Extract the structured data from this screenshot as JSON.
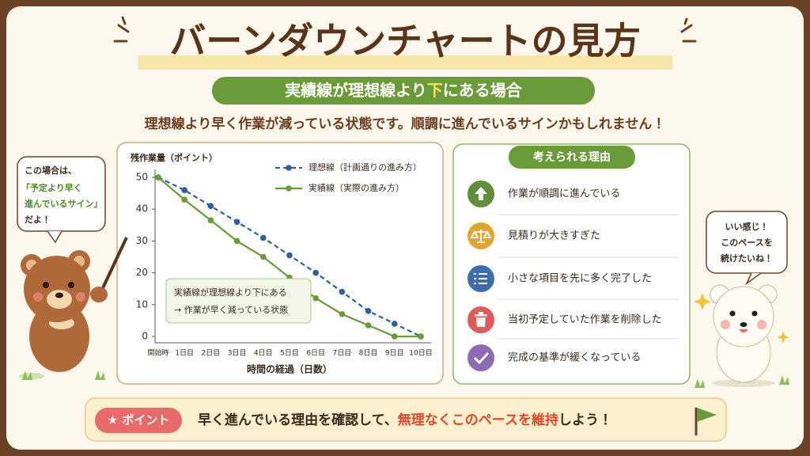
{
  "title": "バーンダウンチャートの見方",
  "subtitle": [
    "実績線が理想線より",
    "下",
    "にある場合"
  ],
  "lead": "理想線より早く作業が減っている状態です。順調に進んでいるサインかもしれません！",
  "left_bubble": [
    "この場合は、",
    "「予定より早く",
    "進んでいるサイン」",
    "だよ！"
  ],
  "right_bubble": [
    "いい感じ！",
    "このペースを",
    "続けたいね！"
  ],
  "chart_data": {
    "type": "line",
    "y_label": "残作業量（ポイント）",
    "x_label": "時間の経過（日数）",
    "categories": [
      "開始時",
      "1日目",
      "2日目",
      "3日目",
      "4日目",
      "5日目",
      "6日目",
      "7日目",
      "8日目",
      "9日目",
      "10日目"
    ],
    "series": [
      {
        "name": "理想線（計画通りの進み方）",
        "color": "#2f5f9e",
        "dashed": true,
        "values": [
          50,
          46,
          41,
          36,
          31,
          25.5,
          20,
          14,
          8,
          4,
          0
        ]
      },
      {
        "name": "実績線（実際の進み方）",
        "color": "#6a9a3a",
        "dashed": false,
        "values": [
          50,
          43,
          36.5,
          30,
          25,
          18.5,
          12,
          7,
          3.5,
          0,
          0
        ]
      }
    ],
    "ylim": [
      -2,
      52
    ],
    "yticks": [
      0,
      10,
      20,
      30,
      40,
      50
    ],
    "annotation": [
      "実績線が理想線より下にある",
      "→ 作業が早く減っている状態"
    ]
  },
  "reasons": {
    "title": "考えられる理由",
    "items": [
      {
        "text": "作業が順調に進んでいる",
        "color": "#5e8f3a"
      },
      {
        "text": "見積りが大きすぎた",
        "color": "#e0a62a"
      },
      {
        "text": "小さな項目を先に多く完了した",
        "color": "#3d6fae"
      },
      {
        "text": "当初予定していた作業を削除した",
        "color": "#e05a5a"
      },
      {
        "text": "完成の基準が緩くなっている",
        "color": "#8e6bb5"
      }
    ]
  },
  "point": {
    "badge": "★ ポイント",
    "text": [
      "早く進んでいる理由を確認して、",
      "無理なくこのペースを維持",
      "しよう！"
    ]
  }
}
